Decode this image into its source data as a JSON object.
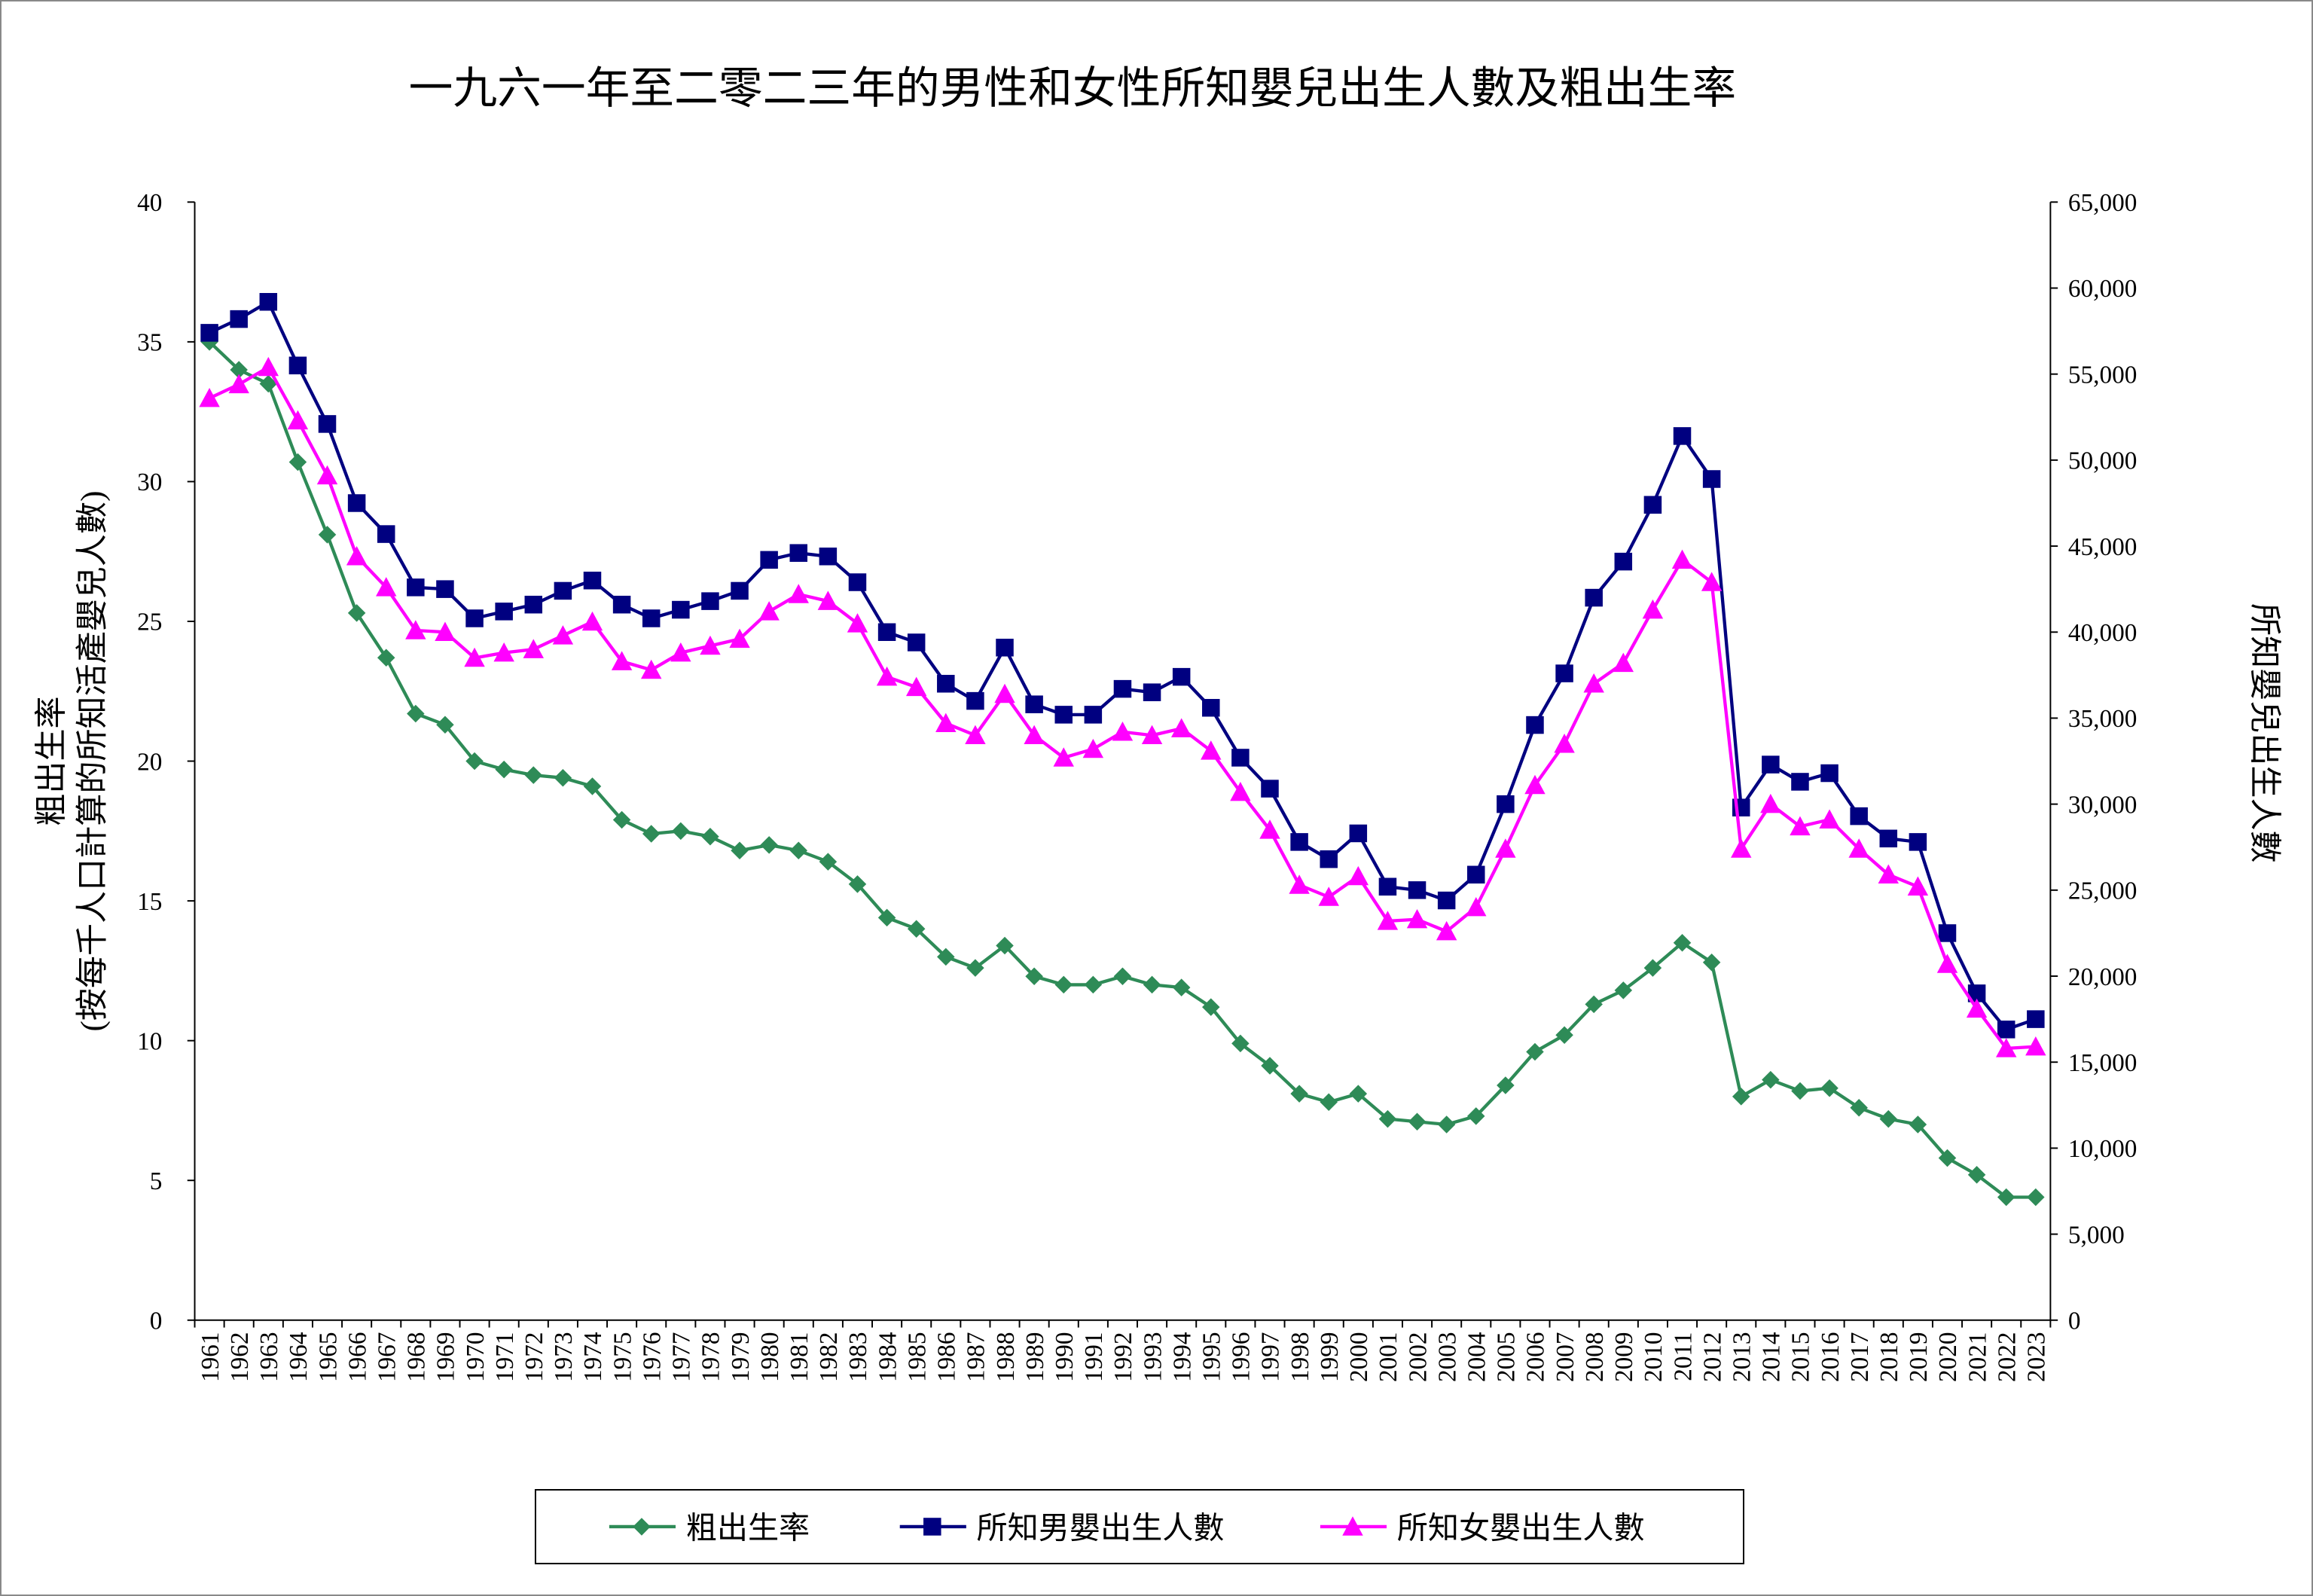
{
  "chart_data": {
    "type": "line",
    "title": "一九六一年至二零二三年的男性和女性所知嬰兒出生人數及粗出生率",
    "ylabel": "粗出生率",
    "ylabel_sub": "(按每千人口計算的所知活產嬰兒人數)",
    "y2label": "所知嬰兒出生人數",
    "ylim": [
      0,
      40
    ],
    "y2lim": [
      0,
      65000
    ],
    "yticks": [
      "0",
      "5",
      "10",
      "15",
      "20",
      "25",
      "30",
      "35",
      "40"
    ],
    "y2ticks": [
      "0",
      "5,000",
      "10,000",
      "15,000",
      "20,000",
      "25,000",
      "30,000",
      "35,000",
      "40,000",
      "45,000",
      "50,000",
      "55,000",
      "60,000",
      "65,000"
    ],
    "legend_position": "bottom",
    "x": [
      "1961",
      "1962",
      "1963",
      "1964",
      "1965",
      "1966",
      "1967",
      "1968",
      "1969",
      "1970",
      "1971",
      "1972",
      "1973",
      "1974",
      "1975",
      "1976",
      "1977",
      "1978",
      "1979",
      "1980",
      "1981",
      "1982",
      "1983",
      "1984",
      "1985",
      "1986",
      "1987",
      "1988",
      "1989",
      "1990",
      "1991",
      "1992",
      "1993",
      "1994",
      "1995",
      "1996",
      "1997",
      "1998",
      "1999",
      "2000",
      "2001",
      "2002",
      "2003",
      "2004",
      "2005",
      "2006",
      "2007",
      "2008",
      "2009",
      "2010",
      "2011",
      "2012",
      "2013",
      "2014",
      "2015",
      "2016",
      "2017",
      "2018",
      "2019",
      "2020",
      "2021",
      "2022",
      "2023"
    ],
    "series": [
      {
        "name": "粗出生率",
        "axis": "left",
        "color": "#2e8b57",
        "marker": "diamond",
        "values": [
          35.0,
          34.0,
          33.5,
          30.7,
          28.1,
          25.3,
          23.7,
          21.7,
          21.3,
          20.0,
          19.7,
          19.5,
          19.4,
          19.1,
          17.9,
          17.4,
          17.5,
          17.3,
          16.8,
          17.0,
          16.8,
          16.4,
          15.6,
          14.4,
          14.0,
          13.0,
          12.6,
          13.4,
          12.3,
          12.0,
          12.0,
          12.3,
          12.0,
          11.9,
          11.2,
          9.9,
          9.1,
          8.1,
          7.8,
          8.1,
          7.2,
          7.1,
          7.0,
          7.3,
          8.4,
          9.6,
          10.2,
          11.3,
          11.8,
          12.6,
          13.5,
          12.8,
          8.0,
          8.6,
          8.2,
          8.3,
          7.6,
          7.2,
          7.0,
          5.8,
          5.2,
          4.4,
          4.4
        ]
      },
      {
        "name": "所知男嬰出生人數",
        "axis": "right",
        "color": "#000080",
        "marker": "square",
        "values": [
          57400,
          58200,
          59200,
          55500,
          52100,
          47500,
          45700,
          42600,
          42500,
          40800,
          41200,
          41600,
          42400,
          43000,
          41600,
          40800,
          41300,
          41800,
          42400,
          44200,
          44600,
          44400,
          42900,
          40000,
          39400,
          37000,
          36000,
          39100,
          35800,
          35200,
          35200,
          36700,
          36500,
          37400,
          35600,
          32700,
          30900,
          27800,
          26800,
          28300,
          25200,
          25000,
          24400,
          25900,
          30000,
          34600,
          37600,
          42000,
          44100,
          47400,
          51400,
          48900,
          29800,
          32300,
          31300,
          31800,
          29300,
          28000,
          27800,
          22500,
          19000,
          16900,
          17500
        ]
      },
      {
        "name": "所知女嬰出生人數",
        "axis": "right",
        "color": "#ff00ff",
        "marker": "triangle",
        "values": [
          53600,
          54400,
          55400,
          52300,
          49100,
          44400,
          42600,
          40100,
          40000,
          38500,
          38800,
          39000,
          39800,
          40600,
          38300,
          37800,
          38800,
          39200,
          39600,
          41200,
          42200,
          41800,
          40500,
          37400,
          36800,
          34700,
          34000,
          36400,
          34000,
          32700,
          33200,
          34200,
          34000,
          34400,
          33100,
          30700,
          28500,
          25300,
          24600,
          25800,
          23200,
          23300,
          22600,
          24000,
          27400,
          31100,
          33500,
          37000,
          38200,
          41300,
          44200,
          42900,
          27400,
          30000,
          28700,
          29100,
          27400,
          25900,
          25200,
          20700,
          18100,
          15800,
          15900
        ]
      }
    ]
  }
}
